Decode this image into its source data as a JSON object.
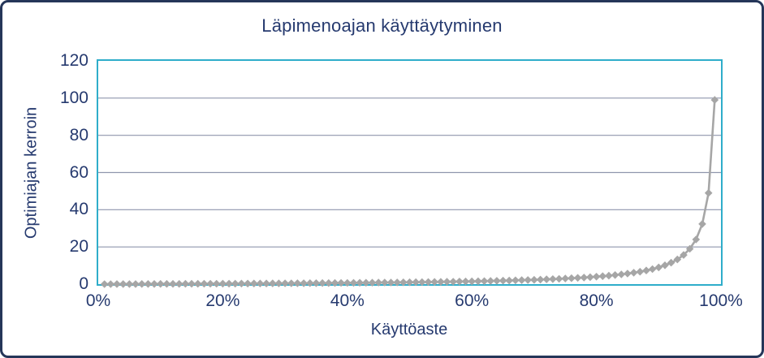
{
  "chart_data": {
    "type": "line",
    "title": "Läpimenoajan käyttäytyminen",
    "xlabel": "Käyttöaste",
    "ylabel": "Optimiajan kerroin",
    "legend": "none",
    "grid": "horizontal",
    "marker": "diamond",
    "xlim": [
      0,
      100
    ],
    "ylim": [
      0,
      120
    ],
    "x_ticks": [
      "0%",
      "20%",
      "40%",
      "60%",
      "80%",
      "100%"
    ],
    "x_tick_values": [
      0,
      20,
      40,
      60,
      80,
      100
    ],
    "y_ticks": [
      0,
      20,
      40,
      60,
      80,
      100,
      120
    ],
    "x_percent": [
      1,
      2,
      3,
      4,
      5,
      6,
      7,
      8,
      9,
      10,
      11,
      12,
      13,
      14,
      15,
      16,
      17,
      18,
      19,
      20,
      21,
      22,
      23,
      24,
      25,
      26,
      27,
      28,
      29,
      30,
      31,
      32,
      33,
      34,
      35,
      36,
      37,
      38,
      39,
      40,
      41,
      42,
      43,
      44,
      45,
      46,
      47,
      48,
      49,
      50,
      51,
      52,
      53,
      54,
      55,
      56,
      57,
      58,
      59,
      60,
      61,
      62,
      63,
      64,
      65,
      66,
      67,
      68,
      69,
      70,
      71,
      72,
      73,
      74,
      75,
      76,
      77,
      78,
      79,
      80,
      81,
      82,
      83,
      84,
      85,
      86,
      87,
      88,
      89,
      90,
      91,
      92,
      93,
      94,
      95,
      96,
      97,
      98,
      99
    ],
    "values": [
      0.01,
      0.02,
      0.031,
      0.042,
      0.053,
      0.064,
      0.075,
      0.087,
      0.099,
      0.111,
      0.124,
      0.136,
      0.149,
      0.163,
      0.176,
      0.19,
      0.205,
      0.22,
      0.235,
      0.25,
      0.266,
      0.282,
      0.299,
      0.316,
      0.333,
      0.351,
      0.37,
      0.389,
      0.408,
      0.429,
      0.449,
      0.471,
      0.493,
      0.515,
      0.538,
      0.563,
      0.587,
      0.613,
      0.639,
      0.667,
      0.695,
      0.724,
      0.754,
      0.786,
      0.818,
      0.852,
      0.887,
      0.923,
      0.961,
      1.0,
      1.041,
      1.083,
      1.128,
      1.174,
      1.222,
      1.273,
      1.326,
      1.381,
      1.439,
      1.5,
      1.564,
      1.632,
      1.703,
      1.778,
      1.857,
      1.941,
      2.03,
      2.125,
      2.226,
      2.333,
      2.448,
      2.571,
      2.704,
      2.846,
      3.0,
      3.167,
      3.348,
      3.545,
      3.762,
      4.0,
      4.263,
      4.556,
      4.882,
      5.25,
      5.667,
      6.143,
      6.692,
      7.333,
      8.091,
      9.0,
      10.111,
      11.5,
      13.286,
      15.667,
      19.0,
      24.0,
      32.333,
      49.0,
      99.0
    ],
    "colors": {
      "series": "#a6a6a6",
      "plot_border": "#2fadca",
      "gridline": "#8f96ad",
      "text": "#263a6f",
      "frame_border": "#253659"
    }
  }
}
